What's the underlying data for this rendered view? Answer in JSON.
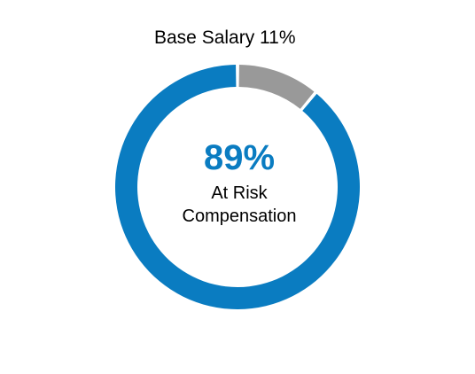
{
  "chart_data": {
    "type": "pie",
    "style": "donut",
    "slices": [
      {
        "label": "Base Salary",
        "value": 11,
        "color": "#999999"
      },
      {
        "label": "At Risk Compensation",
        "value": 89,
        "color": "#0a7cc1"
      }
    ],
    "annotations": {
      "top_label": "Base Salary 11%",
      "center_value": "89%",
      "center_line1": "At Risk",
      "center_line2": "Compensation"
    },
    "legend": "none"
  }
}
